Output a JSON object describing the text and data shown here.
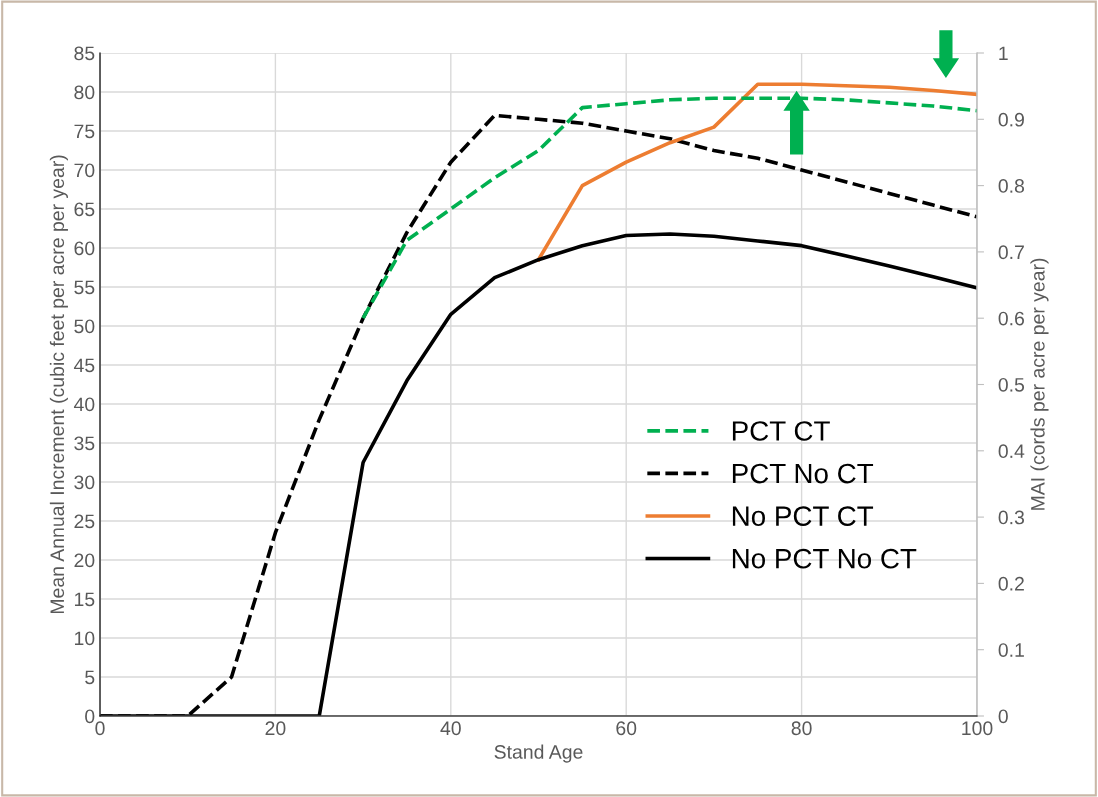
{
  "chart_data": {
    "type": "line",
    "xlabel": "Stand Age",
    "ylabel": "Mean Annual Increment (cubic feet per acre per year)",
    "y2label": "MAI (cords per acre per year)",
    "xlim": [
      0,
      100
    ],
    "xticks": [
      0,
      20,
      40,
      60,
      80,
      100
    ],
    "ylim": [
      0,
      85
    ],
    "yticks": [
      0,
      5,
      10,
      15,
      20,
      25,
      30,
      35,
      40,
      45,
      50,
      55,
      60,
      65,
      70,
      75,
      80,
      85
    ],
    "y2lim": [
      0,
      1
    ],
    "y2ticks": [
      0,
      0.1,
      0.2,
      0.3,
      0.4,
      0.5,
      0.6,
      0.7,
      0.8,
      0.9,
      1
    ],
    "grid": true,
    "legend": "right",
    "marker": "none",
    "series": [
      {
        "name": "PCT CT",
        "color": "#00b050",
        "line_style": "dashed",
        "x": [
          30,
          35,
          40,
          45,
          50,
          55,
          60,
          65,
          70,
          75,
          80,
          85,
          90,
          95,
          100
        ],
        "values": [
          51,
          61,
          65,
          69,
          72.5,
          78,
          78.5,
          79,
          79.2,
          79.2,
          79.2,
          79,
          78.6,
          78.2,
          77.6
        ]
      },
      {
        "name": "PCT No CT",
        "color": "#000000",
        "line_style": "dashed",
        "x": [
          0,
          5,
          10,
          15,
          20,
          25,
          30,
          35,
          40,
          45,
          50,
          55,
          60,
          65,
          70,
          75,
          80,
          85,
          90,
          95,
          100
        ],
        "values": [
          0,
          0,
          0,
          5,
          23.5,
          38,
          51,
          62,
          71,
          77,
          76.5,
          76,
          75,
          74,
          72.5,
          71.5,
          70,
          68.5,
          67,
          65.5,
          64
        ]
      },
      {
        "name": "No PCT CT",
        "color": "#ed7d31",
        "line_style": "solid",
        "x": [
          50,
          55,
          60,
          65,
          70,
          75,
          80,
          85,
          90,
          95,
          100
        ],
        "values": [
          58.5,
          68,
          71,
          73.5,
          75.5,
          81,
          81,
          80.8,
          80.6,
          80.2,
          79.7
        ]
      },
      {
        "name": "No PCT No CT",
        "color": "#000000",
        "line_style": "solid",
        "x": [
          0,
          5,
          10,
          15,
          20,
          25,
          30,
          35,
          40,
          45,
          50,
          55,
          60,
          65,
          70,
          75,
          80,
          85,
          90,
          95,
          100
        ],
        "values": [
          0,
          0,
          0,
          0,
          0,
          0,
          32.5,
          43,
          51.5,
          56.2,
          58.5,
          60.3,
          61.6,
          61.8,
          61.5,
          60.9,
          60.3,
          59,
          57.7,
          56.3,
          54.9
        ]
      }
    ]
  }
}
